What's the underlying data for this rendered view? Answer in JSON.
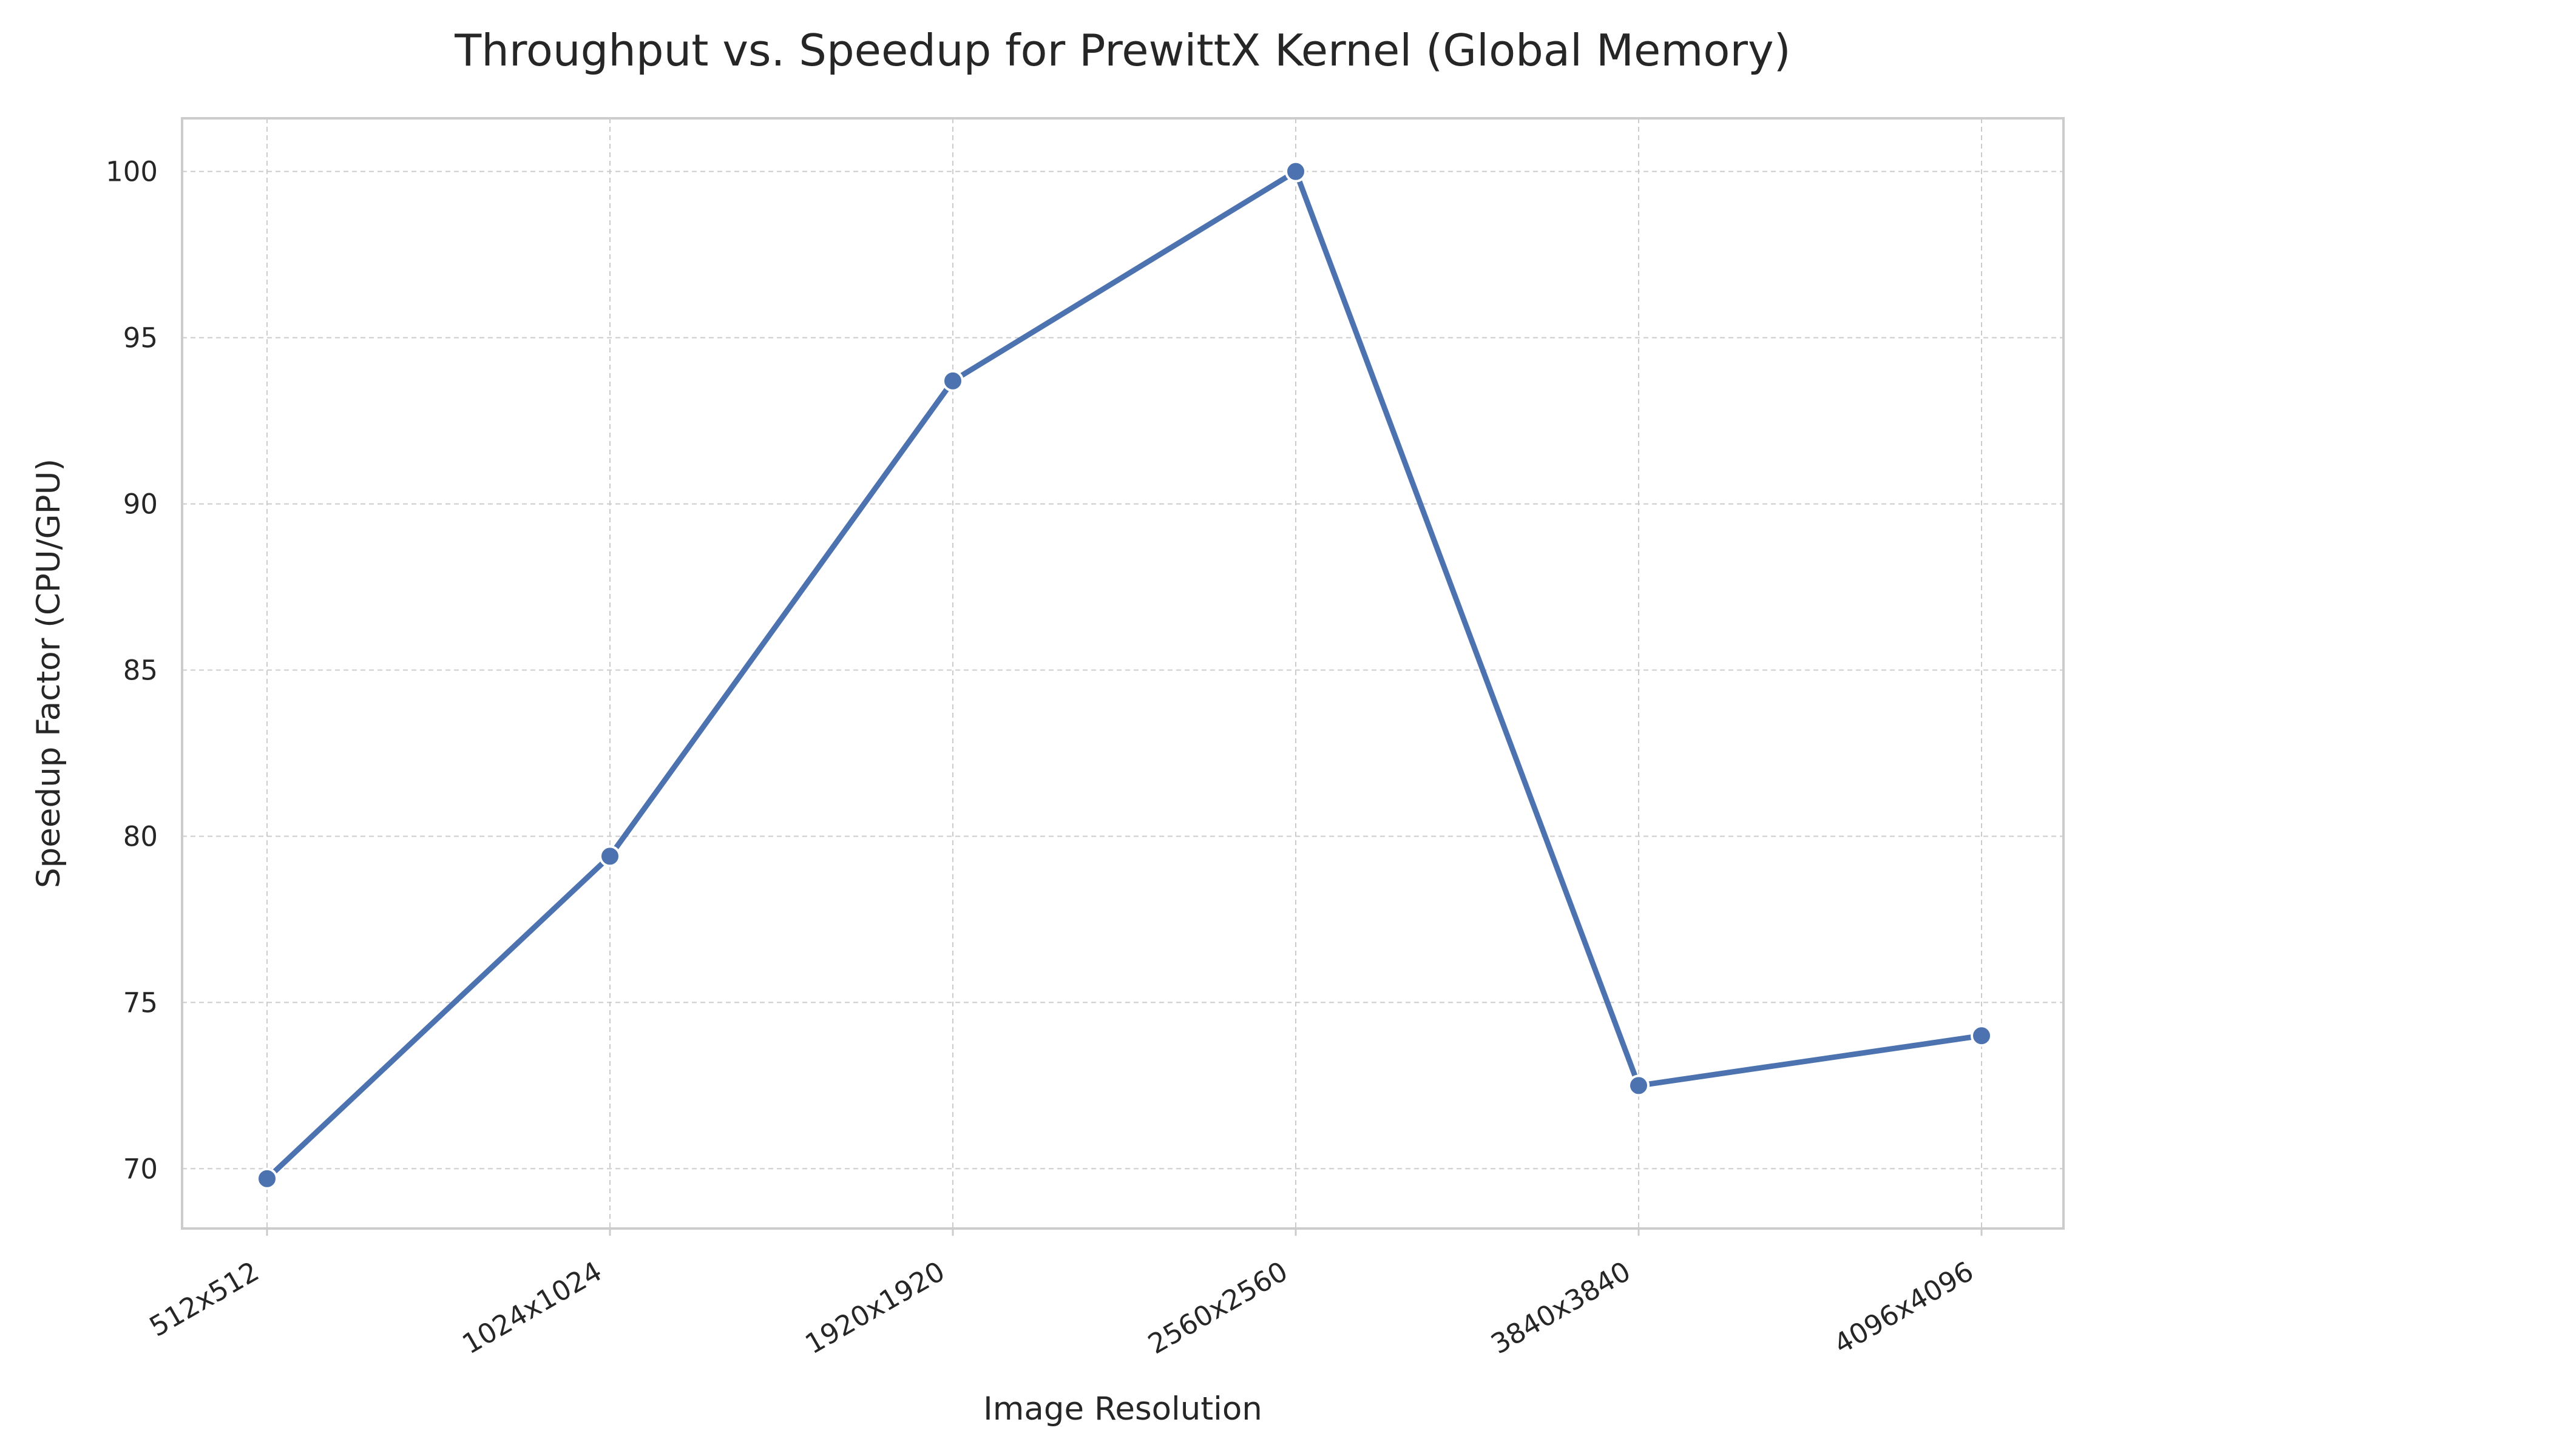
{
  "chart_data": {
    "type": "line",
    "title": "Throughput vs. Speedup for PrewittX Kernel (Global Memory)",
    "xlabel": "Image Resolution",
    "ylabel": "Speedup Factor (CPU/GPU)",
    "categories": [
      "512x512",
      "1024x1024",
      "1920x1920",
      "2560x2560",
      "3840x3840",
      "4096x4096"
    ],
    "series": [
      {
        "values": [
          69.7,
          79.4,
          93.7,
          100.0,
          72.5,
          74.0
        ]
      }
    ],
    "ylim": [
      68.2,
      101.6
    ],
    "yticks": [
      70,
      75,
      80,
      85,
      90,
      95,
      100
    ],
    "grid": true,
    "legend": "none",
    "colors": {
      "line": "#4c72b0",
      "marker_edge": "#ffffff",
      "grid": "#cccccc",
      "frame": "#cccccc",
      "text": "#262626"
    }
  }
}
